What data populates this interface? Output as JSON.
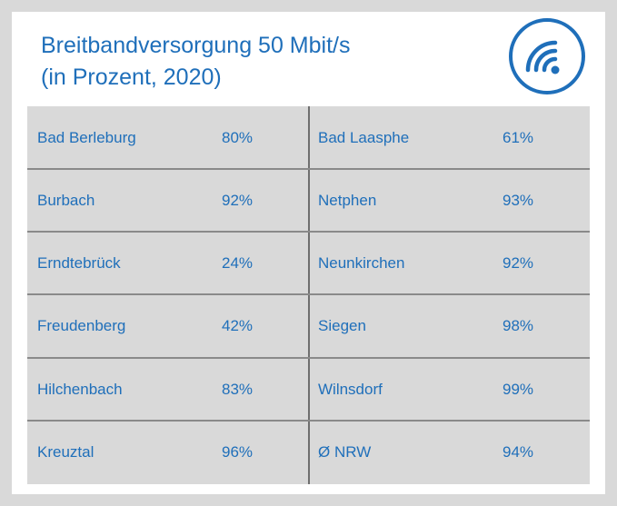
{
  "title": {
    "line1": "Breitbandversorgung 50 Mbit/s",
    "line2": "(in Prozent, 2020)"
  },
  "icon": "wifi-icon",
  "colors": {
    "accent": "#1f6fba",
    "table_bg": "#d9d9d9",
    "background": "#ffffff"
  },
  "table": {
    "rows": [
      {
        "left_name": "Bad Berleburg",
        "left_value": "80%",
        "right_name": "Bad Laasphe",
        "right_value": "61%"
      },
      {
        "left_name": "Burbach",
        "left_value": "92%",
        "right_name": "Netphen",
        "right_value": "93%"
      },
      {
        "left_name": "Erndtebrück",
        "left_value": "24%",
        "right_name": "Neunkirchen",
        "right_value": "92%"
      },
      {
        "left_name": "Freudenberg",
        "left_value": "42%",
        "right_name": "Siegen",
        "right_value": "98%"
      },
      {
        "left_name": "Hilchenbach",
        "left_value": "83%",
        "right_name": "Wilnsdorf",
        "right_value": "99%"
      },
      {
        "left_name": "Kreuztal",
        "left_value": "96%",
        "right_name": "Ø NRW",
        "right_value": "94%"
      }
    ]
  }
}
